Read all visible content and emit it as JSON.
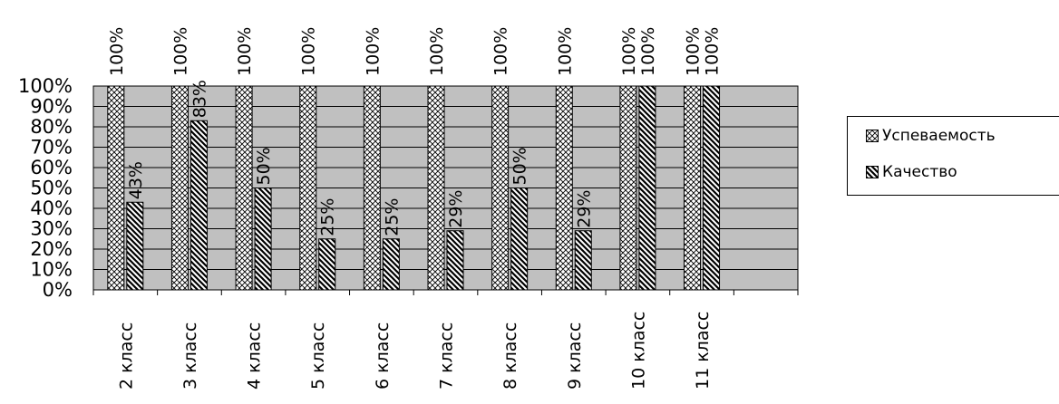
{
  "chart_data": {
    "type": "bar",
    "categories": [
      "2 класс",
      "3 класс",
      "4 класс",
      "5 класс",
      "6 класс",
      "7 класс",
      "8 класс",
      "9 класс",
      "10 класс",
      "11 класс",
      ""
    ],
    "series": [
      {
        "name": "Успеваемость",
        "values": [
          100,
          100,
          100,
          100,
          100,
          100,
          100,
          100,
          100,
          100,
          null
        ],
        "labels": [
          "100%",
          "100%",
          "100%",
          "100%",
          "100%",
          "100%",
          "100%",
          "100%",
          "100%",
          "100%",
          ""
        ]
      },
      {
        "name": "Качество",
        "values": [
          43,
          83,
          50,
          25,
          25,
          29,
          50,
          29,
          100,
          100,
          null
        ],
        "labels": [
          "43%",
          "83%",
          "50%",
          "25%",
          "25%",
          "29%",
          "50%",
          "29%",
          "100%",
          "100%",
          ""
        ]
      }
    ],
    "yticks": [
      "0%",
      "10%",
      "20%",
      "30%",
      "40%",
      "50%",
      "60%",
      "70%",
      "80%",
      "90%",
      "100%"
    ],
    "ylim": [
      0,
      100
    ],
    "grid": true,
    "plot_background": "#c0c0c0",
    "legend": {
      "placement": "right"
    },
    "title": "",
    "xlabel": "",
    "ylabel": ""
  }
}
